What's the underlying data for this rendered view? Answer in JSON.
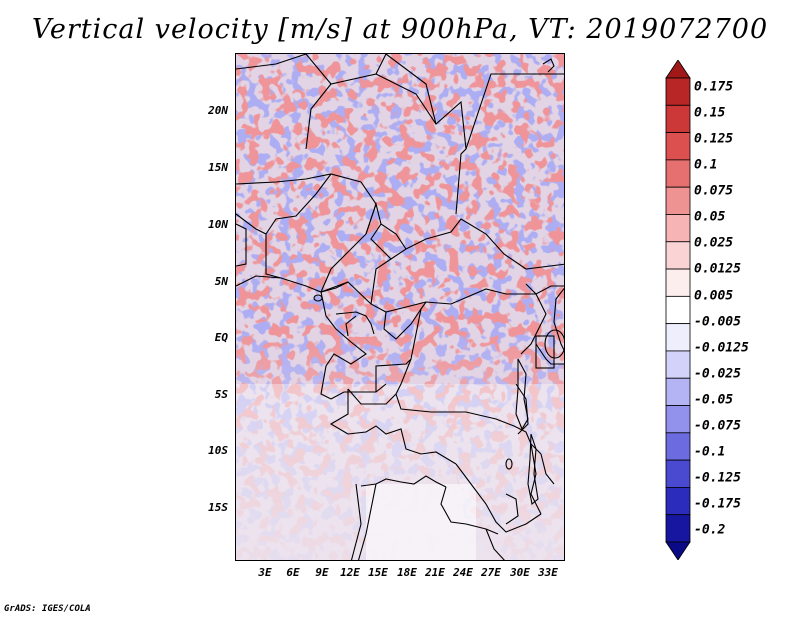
{
  "title": "Vertical velocity [m/s] at 900hPa, VT: 2019072700",
  "credit": "GrADS: IGES/COLA",
  "map": {
    "variable": "Vertical velocity",
    "units": "m/s",
    "level": "900hPa",
    "valid_time": "2019072700",
    "lat_labels": [
      "20N",
      "15N",
      "10N",
      "5N",
      "EQ",
      "5S",
      "10S",
      "15S"
    ],
    "lon_labels": [
      "3E",
      "6E",
      "9E",
      "12E",
      "15E",
      "18E",
      "21E",
      "24E",
      "27E",
      "30E",
      "33E"
    ]
  },
  "colorbar": {
    "labels": [
      "0.175",
      "0.15",
      "0.125",
      "0.1",
      "0.075",
      "0.05",
      "0.025",
      "0.0125",
      "0.005",
      "-0.005",
      "-0.0125",
      "-0.025",
      "-0.05",
      "-0.075",
      "-0.1",
      "-0.125",
      "-0.175",
      "-0.2"
    ],
    "colors": [
      "#a01818",
      "#b82626",
      "#cc3838",
      "#dc5050",
      "#e67070",
      "#ef9292",
      "#f6b4b4",
      "#fad4d4",
      "#fdeeee",
      "#ffffff",
      "#eeeefd",
      "#d2d2fa",
      "#b4b4f4",
      "#9292ec",
      "#6c6ce0",
      "#4a4ad0",
      "#2c2cbc",
      "#1616a0",
      "#0a0a86"
    ]
  }
}
